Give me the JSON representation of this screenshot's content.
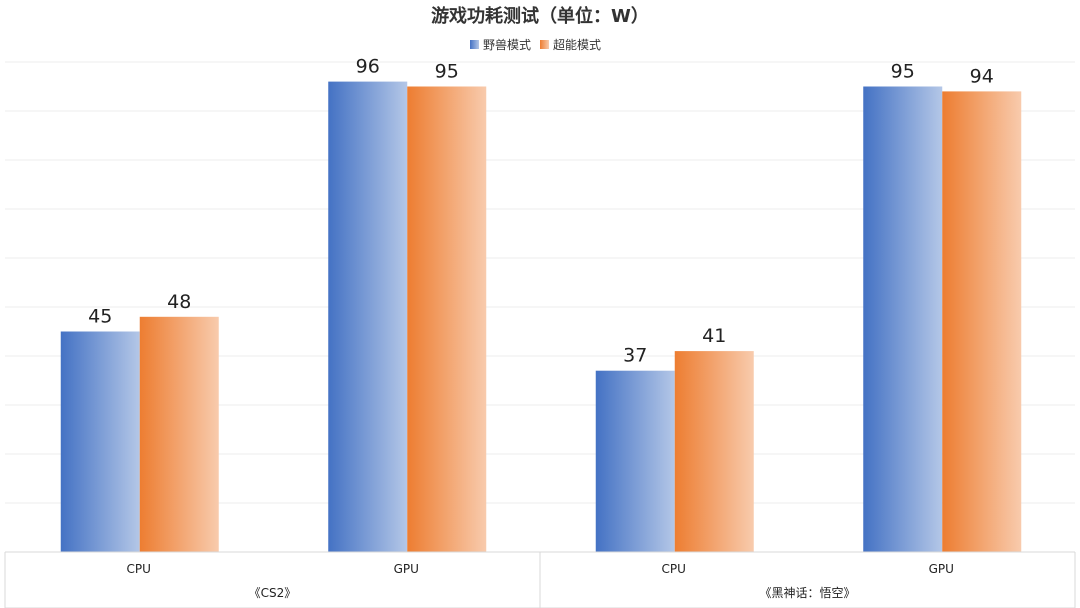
{
  "chart_data": {
    "type": "bar",
    "title": "游戏功耗测试（单位：W）",
    "groups": [
      {
        "label": "《CS2》",
        "categories": [
          "CPU",
          "GPU"
        ]
      },
      {
        "label": "《黑神话：悟空》",
        "categories": [
          "CPU",
          "GPU"
        ]
      }
    ],
    "categories": [
      "CPU",
      "GPU",
      "CPU",
      "GPU"
    ],
    "series": [
      {
        "name": "野兽模式",
        "values": [
          45,
          96,
          37,
          95
        ],
        "color": "#4472C4",
        "color_light": "#B4C7E7"
      },
      {
        "name": "超能模式",
        "values": [
          48,
          95,
          41,
          94
        ],
        "color": "#ED7D31",
        "color_light": "#F8CBAD"
      }
    ],
    "ylim": [
      0,
      100
    ],
    "grid": true,
    "legend_position": "top"
  }
}
